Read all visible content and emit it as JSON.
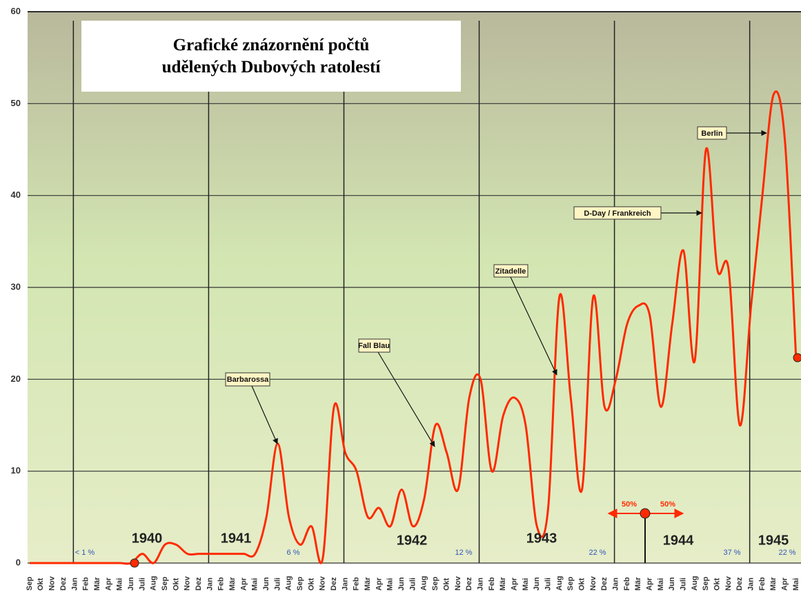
{
  "chart_data": {
    "type": "line",
    "title": "Grafické znázornění počtů udělených Dubových ratolestí",
    "categories": [
      "Sep",
      "Okt",
      "Nov",
      "Dez",
      "Jan",
      "Feb",
      "Mär",
      "Apr",
      "Mai",
      "Jun",
      "Juli",
      "Aug",
      "Sep",
      "Okt",
      "Nov",
      "Dez",
      "Jan",
      "Feb",
      "Mär",
      "Apr",
      "Mai",
      "Jun",
      "Juli",
      "Aug",
      "Sep",
      "Okt",
      "Nov",
      "Dez",
      "Jan",
      "Feb",
      "Mär",
      "Apr",
      "Mai",
      "Jun",
      "Juli",
      "Aug",
      "Sep",
      "Okt",
      "Nov",
      "Dez",
      "Jan",
      "Feb",
      "Mär",
      "Apr",
      "Mai",
      "Jun",
      "Juli",
      "Aug",
      "Sep",
      "Okt",
      "Nov",
      "Dez",
      "Jan",
      "Feb",
      "Mär",
      "Apr",
      "Mai",
      "Jun",
      "Juli",
      "Aug",
      "Sep",
      "Okt",
      "Nov",
      "Dez",
      "Jan",
      "Feb",
      "Mär",
      "Apr",
      "Mai"
    ],
    "values": [
      0,
      0,
      0,
      0,
      0,
      0,
      0,
      0,
      0,
      0,
      1,
      0,
      2,
      2,
      1,
      1,
      1,
      1,
      1,
      1,
      1,
      5,
      13,
      5,
      2,
      4,
      0.5,
      17,
      12,
      10,
      5,
      6,
      4,
      8,
      4,
      7,
      15,
      12,
      8,
      18,
      20,
      10,
      16,
      18,
      15,
      4,
      6,
      29,
      18,
      8,
      29,
      17,
      20,
      26,
      28,
      27,
      17,
      26,
      34,
      22,
      45,
      32,
      32,
      15,
      28,
      40,
      51,
      46,
      22
    ],
    "color": "#ff2a00",
    "ylim": [
      0,
      60
    ],
    "yticks": [
      0,
      10,
      20,
      30,
      40,
      50,
      60
    ],
    "grid": true,
    "year_labels": [
      "1940",
      "1941",
      "1942",
      "1943",
      "1944",
      "1945"
    ],
    "percent_labels": [
      "< 1 %",
      "6 %",
      "12 %",
      "22 %",
      "37 %",
      "22 %"
    ],
    "annotations": [
      "Barbarossa",
      "Fall Blau",
      "Zitadelle",
      "D-Day / Frankreich",
      "Berlin"
    ],
    "split_labels": [
      "50%",
      "50%"
    ]
  }
}
